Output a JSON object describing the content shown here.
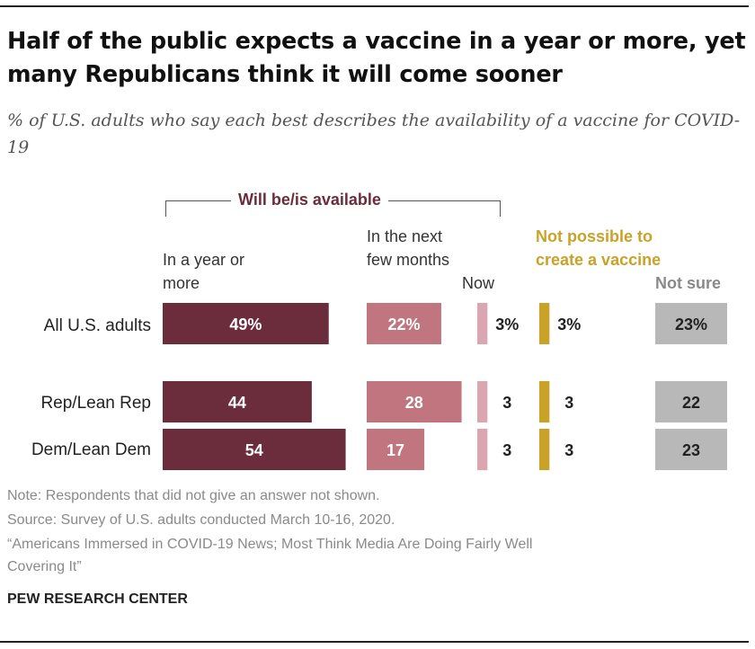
{
  "title": "Half of the public expects a vaccine in a year or more, yet many Republicans think it will come sooner",
  "subtitle": "% of U.S. adults who say each best describes the availability of a vaccine for COVID-19",
  "group_label": "Will be/is available",
  "columns": {
    "year": "In a year or more",
    "months": "In the next few months",
    "now": "Now",
    "not_possible": "Not possible to create a vaccine",
    "not_sure": "Not sure"
  },
  "colors": {
    "year": "#6b2d3c",
    "months": "#c0757f",
    "now": "#dca6b1",
    "not_possible": "#c9a227",
    "not_sure": "#b8b8b8",
    "label_light": "#ffffff",
    "label_dark": "#222222"
  },
  "chart_data": {
    "type": "bar",
    "title": "Half of the public expects a vaccine in a year or more, yet many Republicans think it will come sooner",
    "categories": [
      "All U.S. adults",
      "Rep/Lean Rep",
      "Dem/Lean Dem"
    ],
    "series": [
      {
        "name": "In a year or more",
        "values": [
          49,
          44,
          54
        ],
        "labels": [
          "49%",
          "44",
          "54"
        ]
      },
      {
        "name": "In the next few months",
        "values": [
          22,
          28,
          17
        ],
        "labels": [
          "22%",
          "28",
          "17"
        ]
      },
      {
        "name": "Now",
        "values": [
          3,
          3,
          3
        ],
        "labels": [
          "3%",
          "3",
          "3"
        ]
      },
      {
        "name": "Not possible to create a vaccine",
        "values": [
          3,
          3,
          3
        ],
        "labels": [
          "3%",
          "3",
          "3"
        ]
      },
      {
        "name": "Not sure",
        "values": [
          23,
          22,
          23
        ],
        "labels": [
          "23%",
          "22",
          "23"
        ]
      }
    ],
    "units": "%"
  },
  "footer": {
    "note": "Note: Respondents that did not give an answer not shown.",
    "source": "Source: Survey of U.S. adults conducted March 10-16, 2020.",
    "report_line1": "“Americans Immersed in COVID-19 News; Most Think Media Are Doing Fairly Well",
    "report_line2": "Covering It”",
    "brand": "PEW RESEARCH CENTER"
  }
}
